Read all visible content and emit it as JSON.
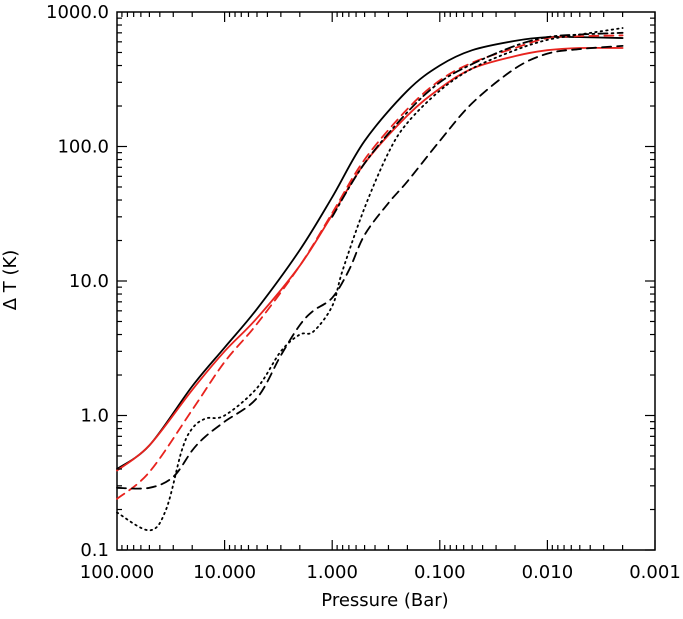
{
  "chart_data": {
    "type": "line",
    "title": "",
    "xlabel": "Pressure (Bar)",
    "ylabel": "Δ T (K)",
    "x_scale": "log",
    "y_scale": "log",
    "x_reversed": true,
    "xlim": [
      100.0,
      0.001
    ],
    "ylim": [
      0.1,
      1000.0
    ],
    "x_ticks": [
      {
        "value": 100.0,
        "label": "100.000"
      },
      {
        "value": 10.0,
        "label": "10.000"
      },
      {
        "value": 1.0,
        "label": "1.000"
      },
      {
        "value": 0.1,
        "label": "0.100"
      },
      {
        "value": 0.01,
        "label": "0.010"
      },
      {
        "value": 0.001,
        "label": "0.001"
      }
    ],
    "y_ticks": [
      {
        "value": 0.1,
        "label": "0.1"
      },
      {
        "value": 1.0,
        "label": "1.0"
      },
      {
        "value": 10.0,
        "label": "10.0"
      },
      {
        "value": 100.0,
        "label": "100.0"
      },
      {
        "value": 1000.0,
        "label": "1000.0"
      }
    ],
    "grid": false,
    "legend": "none",
    "colors": {
      "black": "#000000",
      "red": "#e8231e"
    },
    "series": [
      {
        "color": "black",
        "style": "solid",
        "x": [
          100,
          50,
          20,
          10,
          5,
          2,
          1,
          0.5,
          0.2,
          0.1,
          0.05,
          0.02,
          0.01,
          0.005,
          0.002
        ],
        "y": [
          0.4,
          0.6,
          1.65,
          3.2,
          6.2,
          17,
          42,
          110,
          260,
          400,
          520,
          610,
          650,
          650,
          640
        ]
      },
      {
        "color": "red",
        "style": "solid",
        "x": [
          100,
          50,
          20,
          10,
          5,
          2,
          1,
          0.5,
          0.2,
          0.1,
          0.05,
          0.02,
          0.01,
          0.005,
          0.002
        ],
        "y": [
          0.39,
          0.6,
          1.55,
          3.0,
          5.3,
          13,
          31,
          75,
          170,
          270,
          380,
          470,
          520,
          540,
          540
        ]
      },
      {
        "color": "red",
        "style": "dashed",
        "x": [
          100,
          50,
          20,
          10,
          5,
          2,
          1,
          0.5,
          0.2,
          0.1,
          0.05,
          0.02,
          0.01,
          0.005,
          0.002
        ],
        "y": [
          0.24,
          0.38,
          1.1,
          2.5,
          4.8,
          13,
          32,
          80,
          190,
          310,
          420,
          540,
          640,
          660,
          670
        ]
      },
      {
        "color": "black",
        "style": "dotted",
        "x": [
          100,
          50,
          35,
          25,
          20,
          15,
          10,
          5,
          3,
          2,
          1.5,
          1.0,
          0.8,
          0.5,
          0.3,
          0.2,
          0.1,
          0.05,
          0.02,
          0.01,
          0.005,
          0.002
        ],
        "y": [
          0.19,
          0.14,
          0.2,
          0.55,
          0.8,
          0.95,
          1.0,
          1.6,
          3.0,
          4.0,
          4.2,
          6.5,
          12,
          35,
          90,
          150,
          260,
          380,
          520,
          620,
          680,
          760
        ]
      },
      {
        "color": "black",
        "style": "dashed",
        "x": [
          100,
          50,
          30,
          20,
          15,
          10,
          5,
          3,
          2,
          1.5,
          1.0,
          0.7,
          0.5,
          0.3,
          0.2,
          0.1,
          0.05,
          0.02,
          0.01,
          0.005,
          0.002
        ],
        "y": [
          0.29,
          0.29,
          0.35,
          0.55,
          0.7,
          0.9,
          1.35,
          2.8,
          4.7,
          6.0,
          7.5,
          12,
          22,
          38,
          55,
          110,
          210,
          380,
          490,
          530,
          560
        ]
      },
      {
        "color": "black",
        "style": "dashdot",
        "x": [
          1.0,
          0.5,
          0.2,
          0.1,
          0.05,
          0.02,
          0.01,
          0.005,
          0.002
        ],
        "y": [
          30,
          75,
          180,
          300,
          410,
          560,
          650,
          680,
          700
        ]
      }
    ]
  }
}
